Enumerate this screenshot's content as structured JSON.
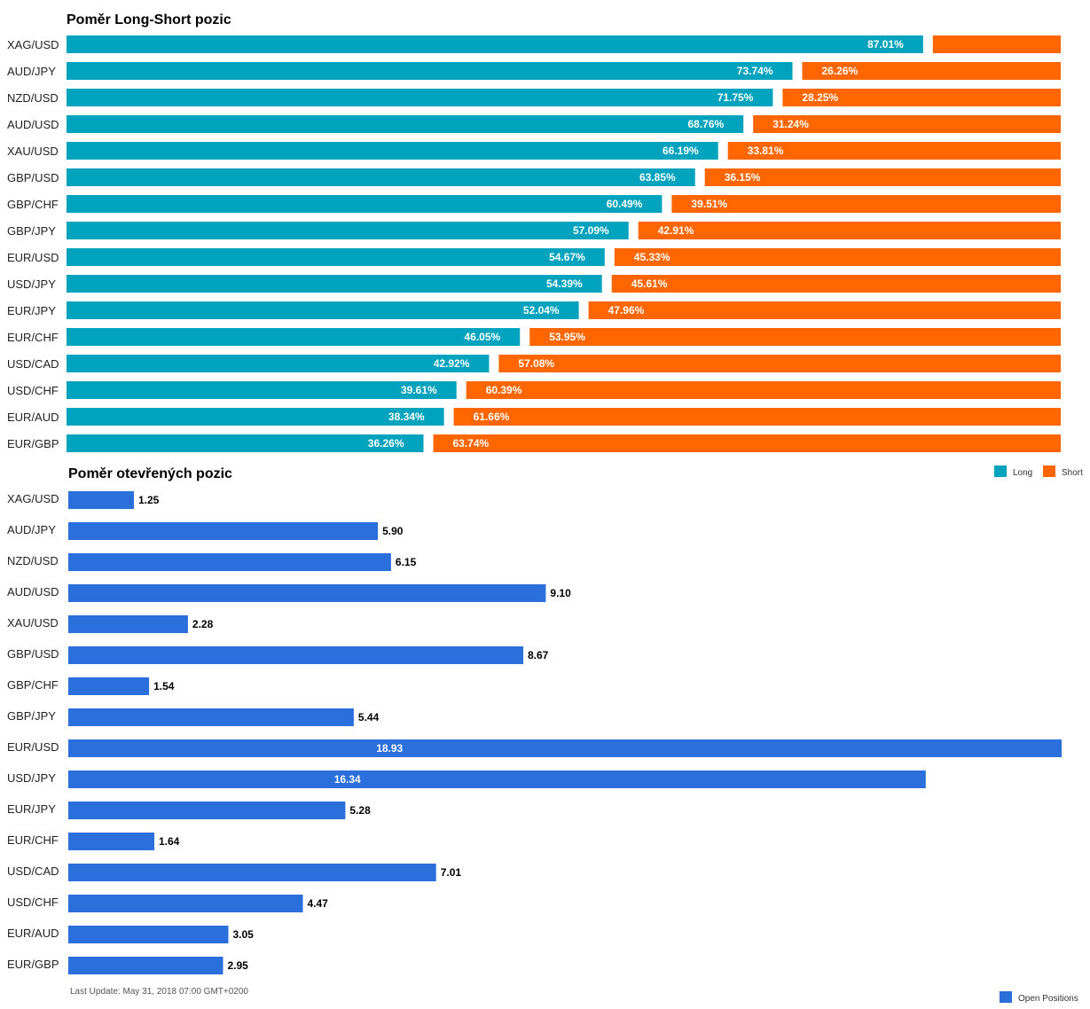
{
  "colors": {
    "long": "#00A3BE",
    "short": "#FF6600",
    "open": "#2A6FDB"
  },
  "chart_data": [
    {
      "type": "bar",
      "orientation": "horizontal",
      "stacked": true,
      "title": "Poměr Long-Short pozic",
      "categories": [
        "XAG/USD",
        "AUD/JPY",
        "NZD/USD",
        "AUD/USD",
        "XAU/USD",
        "GBP/USD",
        "GBP/CHF",
        "GBP/JPY",
        "EUR/USD",
        "USD/JPY",
        "EUR/JPY",
        "EUR/CHF",
        "USD/CAD",
        "USD/CHF",
        "EUR/AUD",
        "EUR/GBP"
      ],
      "series": [
        {
          "name": "Long",
          "values": [
            87.01,
            73.74,
            71.75,
            68.76,
            66.19,
            63.85,
            60.49,
            57.09,
            54.67,
            54.39,
            52.04,
            46.05,
            42.92,
            39.61,
            38.34,
            36.26
          ]
        },
        {
          "name": "Short",
          "values": [
            12.99,
            26.26,
            28.25,
            31.24,
            33.81,
            36.15,
            39.51,
            42.91,
            45.33,
            45.61,
            47.96,
            53.95,
            57.08,
            60.39,
            61.66,
            63.74
          ]
        }
      ],
      "value_labels": {
        "Long": [
          "87.01%",
          "73.74%",
          "71.75%",
          "68.76%",
          "66.19%",
          "63.85%",
          "60.49%",
          "57.09%",
          "54.67%",
          "54.39%",
          "52.04%",
          "46.05%",
          "42.92%",
          "39.61%",
          "38.34%",
          "36.26%"
        ],
        "Short": [
          "",
          "26.26%",
          "28.25%",
          "31.24%",
          "33.81%",
          "36.15%",
          "39.51%",
          "42.91%",
          "45.33%",
          "45.61%",
          "47.96%",
          "53.95%",
          "57.08%",
          "60.39%",
          "61.66%",
          "63.74%"
        ]
      },
      "xlim": [
        0,
        100
      ],
      "legend": "bottom-right"
    },
    {
      "type": "bar",
      "orientation": "horizontal",
      "title": "Poměr otevřených pozic",
      "categories": [
        "XAG/USD",
        "AUD/JPY",
        "NZD/USD",
        "AUD/USD",
        "XAU/USD",
        "GBP/USD",
        "GBP/CHF",
        "GBP/JPY",
        "EUR/USD",
        "USD/JPY",
        "EUR/JPY",
        "EUR/CHF",
        "USD/CAD",
        "USD/CHF",
        "EUR/AUD",
        "EUR/GBP"
      ],
      "series": [
        {
          "name": "Open Positions",
          "values": [
            1.25,
            5.9,
            6.15,
            9.1,
            2.28,
            8.67,
            1.54,
            5.44,
            18.93,
            16.34,
            5.28,
            1.64,
            7.01,
            4.47,
            3.05,
            2.95
          ]
        }
      ],
      "value_labels": [
        "1.25",
        "5.90",
        "6.15",
        "9.10",
        "2.28",
        "8.67",
        "1.54",
        "5.44",
        "18.93",
        "16.34",
        "5.28",
        "1.64",
        "7.01",
        "4.47",
        "3.05",
        "2.95"
      ],
      "xlim": [
        0,
        18.93
      ],
      "legend": "bottom-right"
    }
  ],
  "legend_top": {
    "long_label": "Long",
    "short_label": "Short"
  },
  "legend_bottom": {
    "open_label": "Open Positions"
  },
  "footer": {
    "last_update": "Last Update: May 31, 2018 07:00 GMT+0200"
  }
}
